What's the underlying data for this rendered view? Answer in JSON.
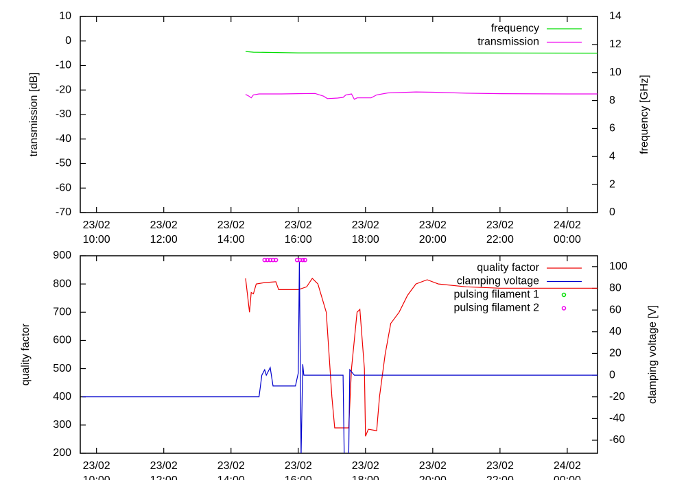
{
  "chart_data": [
    {
      "type": "line",
      "y_label": "transmission [dB]",
      "y2_label": "frequency [GHz]",
      "xlim": [
        "23/02 09:31",
        "24/02 00:54"
      ],
      "xticks": [
        {
          "value": "23/02 10:00",
          "label": "23/02\n10:00"
        },
        {
          "value": "23/02 12:00",
          "label": "23/02\n12:00"
        },
        {
          "value": "23/02 14:00",
          "label": "23/02\n14:00"
        },
        {
          "value": "23/02 16:00",
          "label": "23/02\n16:00"
        },
        {
          "value": "23/02 18:00",
          "label": "23/02\n18:00"
        },
        {
          "value": "23/02 20:00",
          "label": "23/02\n20:00"
        },
        {
          "value": "23/02 22:00",
          "label": "23/02\n22:00"
        },
        {
          "value": "24/02 00:00",
          "label": "24/02\n00:00"
        }
      ],
      "ylim": [
        -70,
        10
      ],
      "yticks": [
        -70,
        -60,
        -50,
        -40,
        -30,
        -20,
        -10,
        0,
        10
      ],
      "y2lim": [
        0,
        14
      ],
      "y2ticks": [
        0,
        2,
        4,
        6,
        8,
        10,
        12,
        14
      ],
      "legend": "top-right",
      "series": [
        {
          "name": "frequency",
          "color": "#00dd00",
          "axis": "y2",
          "style": "lines",
          "x": [
            "23/02 14:26",
            "23/02 14:40",
            "23/02 16:00",
            "23/02 18:00",
            "23/02 20:00",
            "24/02 00:54"
          ],
          "values": [
            11.5,
            11.45,
            11.4,
            11.4,
            11.4,
            11.38
          ]
        },
        {
          "name": "transmission",
          "color": "#ee00ee",
          "axis": "y",
          "style": "lines",
          "x": [
            "23/02 14:26",
            "23/02 14:32",
            "23/02 14:36",
            "23/02 14:40",
            "23/02 14:50",
            "23/02 15:30",
            "23/02 16:00",
            "23/02 16:30",
            "23/02 16:45",
            "23/02 16:52",
            "23/02 17:10",
            "23/02 17:20",
            "23/02 17:25",
            "23/02 17:35",
            "23/02 17:40",
            "23/02 17:45",
            "23/02 18:10",
            "23/02 18:20",
            "23/02 18:40",
            "23/02 19:30",
            "23/02 20:00",
            "23/02 21:00",
            "23/02 22:00",
            "24/02 00:00",
            "24/02 00:54"
          ],
          "values": [
            -21.8,
            -22.5,
            -23.2,
            -22,
            -21.6,
            -21.6,
            -21.5,
            -21.4,
            -22.5,
            -23.5,
            -23.3,
            -23,
            -22,
            -21.6,
            -23.8,
            -23.2,
            -23.2,
            -22,
            -21.2,
            -20.8,
            -20.9,
            -21.3,
            -21.5,
            -21.6,
            -21.6
          ]
        }
      ]
    },
    {
      "type": "line",
      "y_label": "quality factor",
      "y2_label": "clamping voltage [V]",
      "xlim": [
        "23/02 09:31",
        "24/02 00:54"
      ],
      "xticks": [
        {
          "value": "23/02 10:00",
          "label": "23/02\n10:00"
        },
        {
          "value": "23/02 12:00",
          "label": "23/02\n12:00"
        },
        {
          "value": "23/02 14:00",
          "label": "23/02\n14:00"
        },
        {
          "value": "23/02 16:00",
          "label": "23/02\n16:00"
        },
        {
          "value": "23/02 18:00",
          "label": "23/02\n18:00"
        },
        {
          "value": "23/02 20:00",
          "label": "23/02\n20:00"
        },
        {
          "value": "23/02 22:00",
          "label": "23/02\n22:00"
        },
        {
          "value": "24/02 00:00",
          "label": "24/02\n00:00"
        }
      ],
      "ylim": [
        200,
        900
      ],
      "yticks": [
        200,
        300,
        400,
        500,
        600,
        700,
        800,
        900
      ],
      "y2lim": [
        -72,
        110
      ],
      "y2ticks": [
        -60,
        -40,
        -20,
        0,
        20,
        40,
        60,
        80,
        100
      ],
      "legend": "top-right",
      "series": [
        {
          "name": "quality factor",
          "color": "#ee0000",
          "axis": "y",
          "style": "lines",
          "x": [
            "23/02 14:26",
            "23/02 14:33",
            "23/02 14:36",
            "23/02 14:40",
            "23/02 14:45",
            "23/02 15:00",
            "23/02 15:20",
            "23/02 15:25",
            "23/02 16:00",
            "23/02 16:15",
            "23/02 16:25",
            "23/02 16:35",
            "23/02 16:50",
            "23/02 17:00",
            "23/02 17:05",
            "23/02 17:30",
            "23/02 17:35",
            "23/02 17:45",
            "23/02 17:50",
            "23/02 17:58",
            "23/02 18:00",
            "23/02 18:05",
            "23/02 18:20",
            "23/02 18:25",
            "23/02 18:35",
            "23/02 18:45",
            "23/02 19:00",
            "23/02 19:15",
            "23/02 19:30",
            "23/02 19:50",
            "23/02 20:10",
            "23/02 21:00",
            "23/02 22:00",
            "24/02 00:54"
          ],
          "values": [
            820,
            700,
            770,
            765,
            800,
            805,
            808,
            780,
            780,
            790,
            820,
            800,
            700,
            400,
            290,
            290,
            500,
            700,
            710,
            500,
            260,
            285,
            280,
            400,
            550,
            660,
            700,
            760,
            800,
            815,
            800,
            790,
            785,
            785
          ]
        },
        {
          "name": "clamping voltage",
          "color": "#0000cc",
          "axis": "y2",
          "style": "lines",
          "x": [
            "23/02 09:35",
            "23/02 14:50",
            "23/02 14:55",
            "23/02 15:00",
            "23/02 15:03",
            "23/02 15:10",
            "23/02 15:15",
            "23/02 15:55",
            "23/02 16:00",
            "23/02 16:02",
            "23/02 16:05",
            "23/02 16:08",
            "23/02 16:10",
            "23/02 17:20",
            "23/02 17:22",
            "23/02 17:30",
            "23/02 17:32",
            "23/02 17:40",
            "24/02 00:54"
          ],
          "values": [
            -20,
            -20,
            0,
            5,
            0,
            7,
            -10,
            -10,
            2,
            105,
            -75,
            10,
            0,
            0,
            -75,
            -75,
            5,
            0,
            0
          ]
        },
        {
          "name": "pulsing filament 1",
          "color": "#00dd00",
          "axis": "y",
          "style": "points",
          "x": [],
          "values": []
        },
        {
          "name": "pulsing filament 2",
          "color": "#ee00ee",
          "axis": "y",
          "style": "points",
          "x": [
            "23/02 15:00",
            "23/02 15:05",
            "23/02 15:10",
            "23/02 15:15",
            "23/02 15:20",
            "23/02 15:58",
            "23/02 16:03",
            "23/02 16:08",
            "23/02 16:12"
          ],
          "values": [
            885,
            885,
            885,
            885,
            885,
            885,
            885,
            885,
            885
          ]
        }
      ]
    }
  ]
}
